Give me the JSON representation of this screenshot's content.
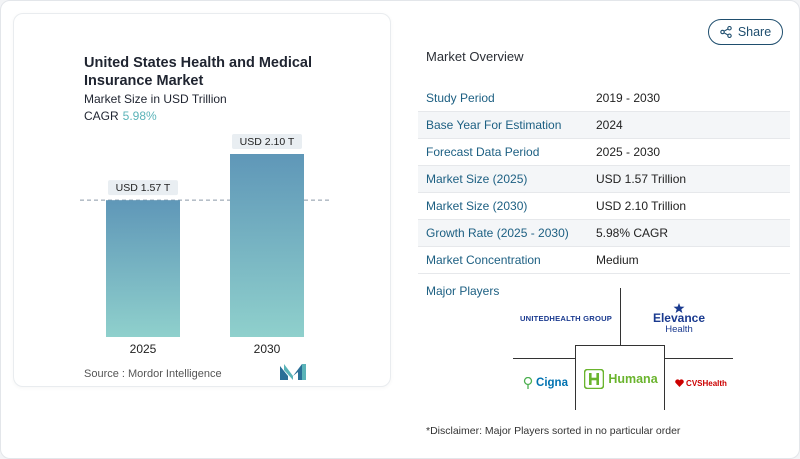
{
  "chart": {
    "title": "United States Health and Medical Insurance Market",
    "subtitle": "Market Size in USD Trillion",
    "cagr_label": "CAGR",
    "cagr_value": "5.98%",
    "source": "Source :  Mordor Intelligence"
  },
  "chart_data": {
    "type": "bar",
    "categories": [
      "2025",
      "2030"
    ],
    "values": [
      1.57,
      2.1
    ],
    "data_labels": [
      "USD 1.57 T",
      "USD 2.10 T"
    ],
    "title": "United States Health and Medical Insurance Market",
    "ylabel": "Market Size in USD Trillion",
    "ylim": [
      0,
      2.2
    ],
    "grid": false,
    "reference_line_at": 1.57,
    "colors": {
      "bar_top": "#5f97b8",
      "bar_bottom": "#8fd0cc"
    }
  },
  "share": {
    "label": "Share"
  },
  "overview": {
    "title": "Market Overview",
    "rows": [
      {
        "label": "Study Period",
        "value": "2019 - 2030"
      },
      {
        "label": "Base Year For Estimation",
        "value": "2024"
      },
      {
        "label": "Forecast Data Period",
        "value": "2025 - 2030"
      },
      {
        "label": "Market Size (2025)",
        "value": "USD 1.57 Trillion"
      },
      {
        "label": "Market Size (2030)",
        "value": "USD 2.10 Trillion"
      },
      {
        "label": "Growth Rate (2025 - 2030)",
        "value": "5.98% CAGR"
      },
      {
        "label": "Market Concentration",
        "value": "Medium"
      }
    ]
  },
  "players": {
    "title": "Major Players",
    "logos": {
      "unitedhealth": "UNITEDHEALTH GROUP",
      "elevance_top": "Elevance",
      "elevance_bottom": "Health",
      "cigna": "Cigna",
      "humana": "Humana",
      "cvs": "CVSHealth"
    }
  },
  "disclaimer": "*Disclaimer: Major Players sorted in no particular order",
  "colors": {
    "accent": "#1c5f82",
    "cagr": "#5ab3b8",
    "humana_green": "#6ab42d",
    "cvs_red": "#cc0000",
    "elevance_blue": "#1a3a8f",
    "cigna_blue": "#0072b1",
    "cigna_green": "#4caf50"
  }
}
